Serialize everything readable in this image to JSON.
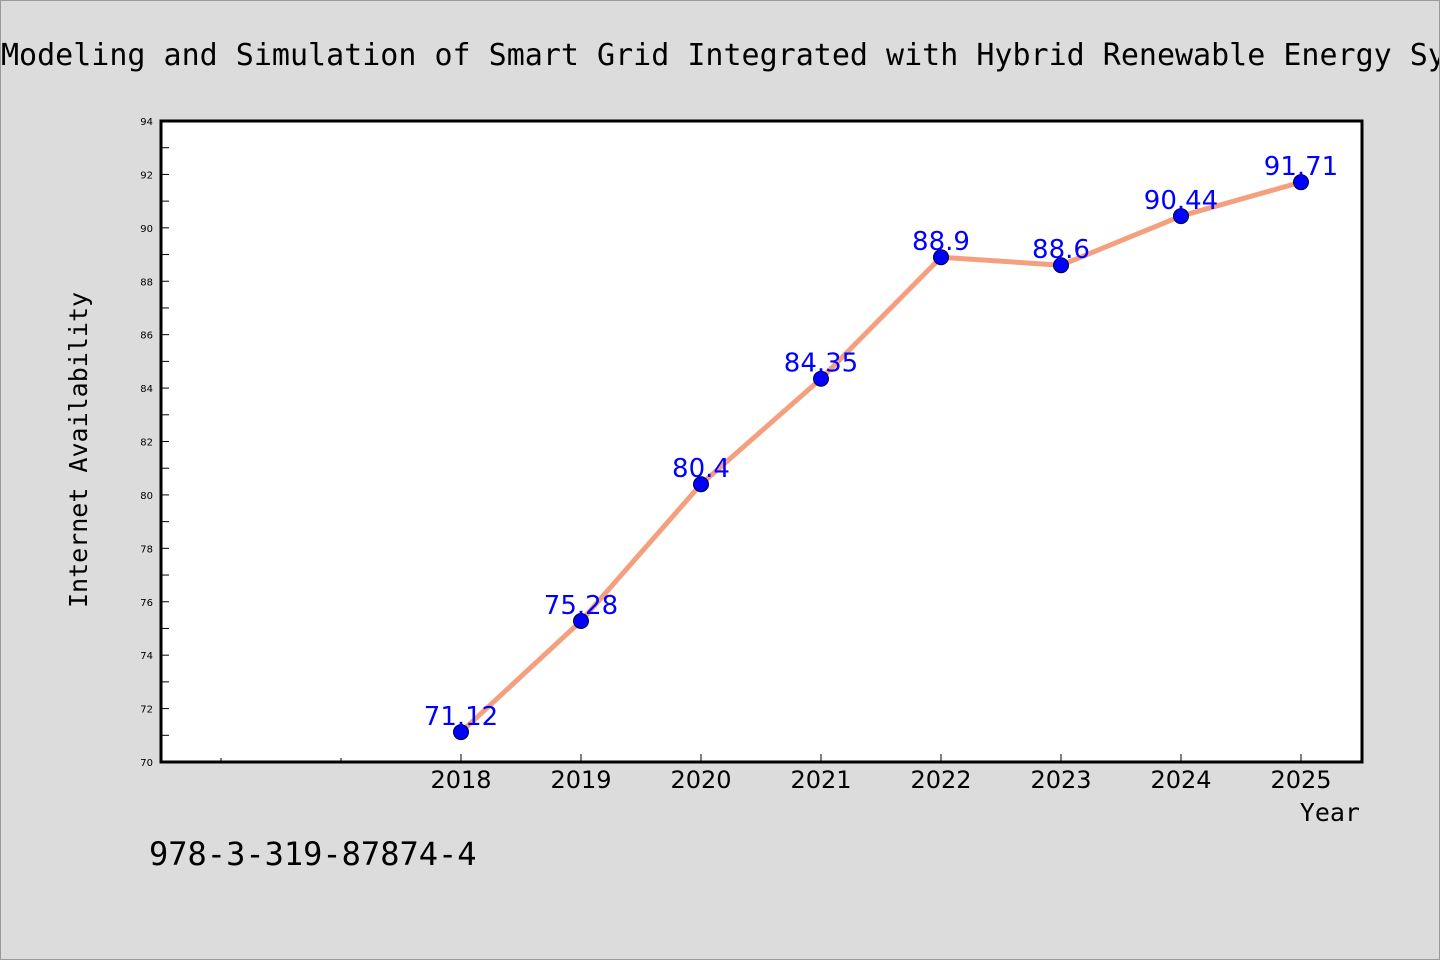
{
  "chart_data": {
    "type": "line",
    "title": "Modeling and Simulation of Smart Grid Integrated with Hybrid Renewable Energy Sy",
    "xlabel": "Year",
    "ylabel": "Internet Availability",
    "categories": [
      "2018",
      "2019",
      "2020",
      "2021",
      "2022",
      "2023",
      "2024",
      "2025"
    ],
    "series": [
      {
        "values": [
          71.12,
          75.28,
          80.4,
          84.35,
          88.9,
          88.6,
          90.44,
          91.71
        ],
        "data_labels": [
          "71.12",
          "75.28",
          "80.4",
          "84.35",
          "88.9",
          "88.6",
          "90.44",
          "91.71"
        ],
        "line_color": "#f4a07e",
        "marker_color": "#0000ff",
        "label_color": "#0000ff"
      }
    ],
    "ylim": [
      70,
      94
    ],
    "yticks": [
      "70",
      "72",
      "74",
      "76",
      "78",
      "80",
      "82",
      "84",
      "86",
      "88",
      "90",
      "92",
      "94"
    ],
    "grid": false,
    "legend": "none"
  },
  "footnote": "978-3-319-87874-4",
  "colors": {
    "background": "#dcdcdc",
    "plot_background": "#ffffff",
    "axis": "#000000"
  }
}
